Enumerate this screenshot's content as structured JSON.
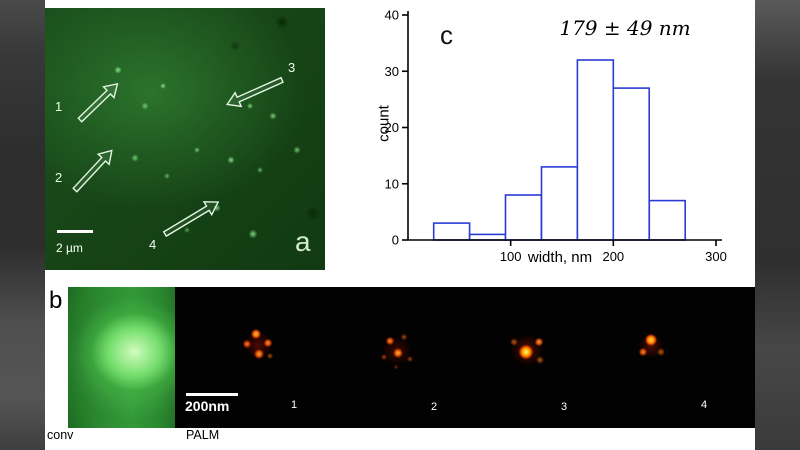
{
  "colors": {
    "background": "#ffffff",
    "letterbox": "#3a3a3a",
    "microscopy_green": "#2e8a33",
    "palm_hot": "#ff7a00",
    "histogram_edge": "#2a3cd4"
  },
  "panel_a": {
    "label": "a",
    "scale_bar_label": "2 µm",
    "arrow_labels": [
      "1",
      "2",
      "3",
      "4"
    ]
  },
  "panel_b": {
    "label": "b",
    "scale_bar_label": "200nm",
    "conv_caption": "conv",
    "palm_caption": "PALM",
    "spot_labels": [
      "1",
      "2",
      "3",
      "4"
    ]
  },
  "chart_data": {
    "type": "bar",
    "panel_label": "c",
    "annotation": "179 ± 49 nm",
    "xlabel": "width, nm",
    "ylabel": "count",
    "xlim": [
      0,
      300
    ],
    "ylim": [
      0,
      40
    ],
    "xticks": [
      100,
      200,
      300
    ],
    "yticks": [
      0,
      10,
      20,
      30,
      40
    ],
    "bin_edges": [
      25,
      60,
      95,
      130,
      165,
      200,
      235,
      270
    ],
    "counts": [
      3,
      1,
      8,
      13,
      32,
      27,
      7
    ],
    "bar_fill": "#ffffff",
    "bar_edge": "#2a3cd4",
    "axis_color": "#000000",
    "grid": false,
    "legend": false
  }
}
